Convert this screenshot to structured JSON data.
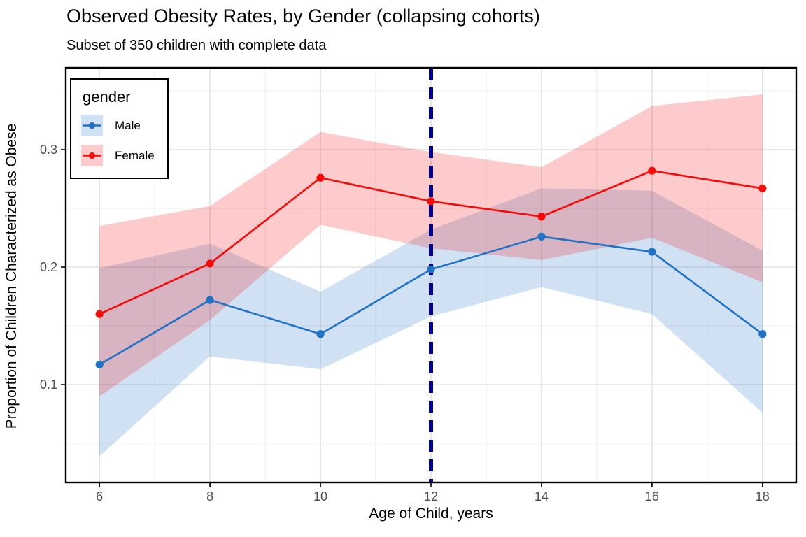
{
  "chart_data": {
    "type": "line",
    "title": "Observed Obesity Rates, by Gender (collapsing cohorts)",
    "subtitle": "Subset of 350 children with complete data",
    "xlabel": "Age of Child, years",
    "ylabel": "Proportion of Children Characterized as Obese",
    "x": [
      6,
      8,
      10,
      12,
      14,
      16,
      18
    ],
    "x_ticks": [
      6,
      8,
      10,
      12,
      14,
      16,
      18
    ],
    "x_tick_labels": [
      "6",
      "8",
      "10",
      "12",
      "14",
      "16",
      "18"
    ],
    "x_minor_ticks": [
      7,
      9,
      11,
      13,
      15,
      17
    ],
    "y_ticks": [
      0.1,
      0.2,
      0.3
    ],
    "y_tick_labels": [
      "0.1",
      "0.2",
      "0.3"
    ],
    "y_minor_ticks": [
      0.05,
      0.15,
      0.25,
      0.35
    ],
    "x_domain": [
      5.39,
      18.61
    ],
    "y_domain": [
      0.0167,
      0.3696
    ],
    "grid": true,
    "legend": {
      "title": "gender",
      "position": "top-left-inside"
    },
    "vline": {
      "x": 12,
      "color": "#00008B",
      "style": "dashed"
    },
    "series": [
      {
        "name": "Male",
        "color": "#2171C4",
        "values": [
          0.117,
          0.172,
          0.143,
          0.198,
          0.226,
          0.213,
          0.143
        ],
        "lower": [
          0.039,
          0.124,
          0.113,
          0.158,
          0.183,
          0.16,
          0.076
        ],
        "upper": [
          0.199,
          0.22,
          0.179,
          0.232,
          0.267,
          0.265,
          0.214
        ]
      },
      {
        "name": "Female",
        "color": "#F50A0A",
        "values": [
          0.16,
          0.203,
          0.276,
          0.256,
          0.243,
          0.282,
          0.267
        ],
        "lower": [
          0.09,
          0.155,
          0.236,
          0.216,
          0.206,
          0.225,
          0.187
        ],
        "upper": [
          0.235,
          0.252,
          0.315,
          0.298,
          0.285,
          0.337,
          0.347
        ]
      }
    ]
  }
}
